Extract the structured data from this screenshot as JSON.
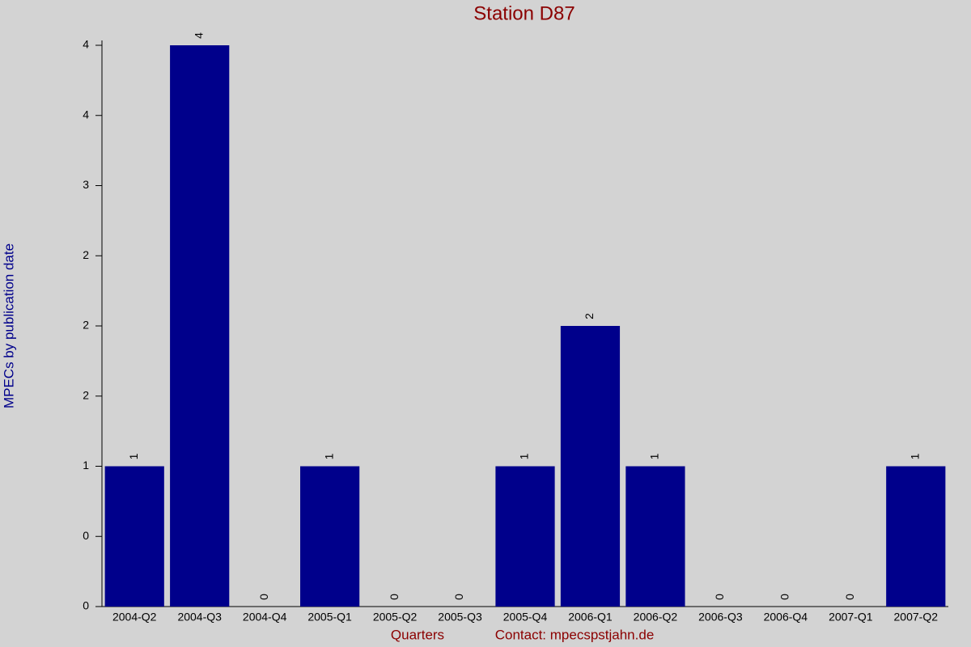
{
  "chart_data": {
    "type": "bar",
    "title": "Station D87",
    "x_label": "Quarters",
    "contact": "Contact: mpecspstjahn.de",
    "y_label": "MPECs by publication date",
    "categories": [
      "2004-Q2",
      "2004-Q3",
      "2004-Q4",
      "2005-Q1",
      "2005-Q2",
      "2005-Q3",
      "2005-Q4",
      "2006-Q1",
      "2006-Q2",
      "2006-Q3",
      "2006-Q4",
      "2007-Q1",
      "2007-Q2"
    ],
    "values": [
      1,
      4,
      0,
      1,
      0,
      0,
      1,
      2,
      1,
      0,
      0,
      0,
      1
    ],
    "color": "#00008b",
    "ylim": [
      0,
      4
    ],
    "yticks": [
      0,
      {
        "value": 0.5,
        "label": "0"
      },
      1,
      {
        "value": 1.5,
        "label": "2"
      },
      2,
      {
        "value": 2.5,
        "label": "2"
      },
      3,
      {
        "value": 3.5,
        "label": "4"
      },
      4
    ]
  }
}
